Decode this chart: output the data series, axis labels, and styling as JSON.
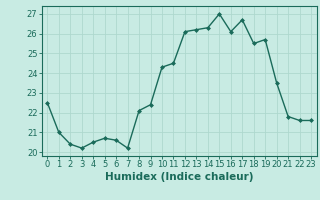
{
  "x": [
    0,
    1,
    2,
    3,
    4,
    5,
    6,
    7,
    8,
    9,
    10,
    11,
    12,
    13,
    14,
    15,
    16,
    17,
    18,
    19,
    20,
    21,
    22,
    23
  ],
  "y": [
    22.5,
    21.0,
    20.4,
    20.2,
    20.5,
    20.7,
    20.6,
    20.2,
    22.1,
    22.4,
    24.3,
    24.5,
    26.1,
    26.2,
    26.3,
    27.0,
    26.1,
    26.7,
    25.5,
    25.7,
    23.5,
    21.8,
    21.6,
    21.6
  ],
  "line_color": "#1a6b5a",
  "marker": "D",
  "marker_size": 2.0,
  "line_width": 1.0,
  "bg_color": "#c8ebe3",
  "grid_color": "#aed8ce",
  "xlabel": "Humidex (Indice chaleur)",
  "xlabel_fontsize": 7.5,
  "ylabel_ticks": [
    20,
    21,
    22,
    23,
    24,
    25,
    26,
    27
  ],
  "xticks": [
    0,
    1,
    2,
    3,
    4,
    5,
    6,
    7,
    8,
    9,
    10,
    11,
    12,
    13,
    14,
    15,
    16,
    17,
    18,
    19,
    20,
    21,
    22,
    23
  ],
  "xlim": [
    -0.5,
    23.5
  ],
  "ylim": [
    19.8,
    27.4
  ],
  "tick_fontsize": 6.0
}
